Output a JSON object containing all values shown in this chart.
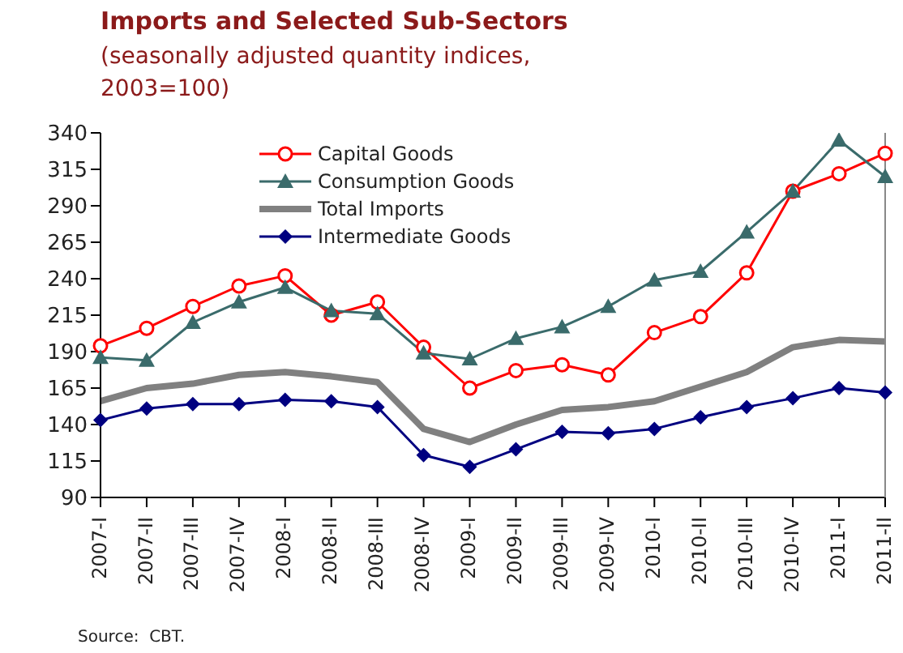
{
  "chart_data": {
    "type": "line",
    "title": "Imports and Selected Sub-Sectors",
    "subtitle": "(seasonally adjusted quantity indices, 2003=100)",
    "categories": [
      "2007-I",
      "2007-II",
      "2007-III",
      "2007-IV",
      "2008-I",
      "2008-II",
      "2008-III",
      "2008-IV",
      "2009-I",
      "2009-II",
      "2009-III",
      "2009-IV",
      "2010-I",
      "2010-II",
      "2010-III",
      "2010-IV",
      "2011-I",
      "2011-II"
    ],
    "series": [
      {
        "name": "Capital Goods",
        "color": "#ff0000",
        "marker": "circle",
        "values": [
          194,
          206,
          221,
          235,
          242,
          215,
          224,
          193,
          165,
          177,
          181,
          174,
          203,
          214,
          244,
          300,
          312,
          326
        ]
      },
      {
        "name": "Consumption Goods",
        "color": "#3a6b6b",
        "marker": "triangle",
        "values": [
          186,
          184,
          210,
          224,
          234,
          218,
          216,
          189,
          185,
          199,
          207,
          221,
          239,
          245,
          272,
          300,
          335,
          310
        ]
      },
      {
        "name": "Total Imports",
        "color": "#808080",
        "marker": "none",
        "values": [
          156,
          165,
          168,
          174,
          176,
          173,
          169,
          137,
          128,
          140,
          150,
          152,
          156,
          166,
          176,
          193,
          198,
          197
        ]
      },
      {
        "name": "Intermediate Goods",
        "color": "#000080",
        "marker": "diamond",
        "values": [
          143,
          151,
          154,
          154,
          157,
          156,
          152,
          119,
          111,
          123,
          135,
          134,
          137,
          145,
          152,
          158,
          165,
          162
        ]
      }
    ],
    "ylim": [
      90,
      340
    ],
    "yticks": [
      90,
      115,
      140,
      165,
      190,
      215,
      240,
      265,
      290,
      315,
      340
    ],
    "legend": "top left",
    "annotations": [
      "Source:  CBT."
    ]
  }
}
